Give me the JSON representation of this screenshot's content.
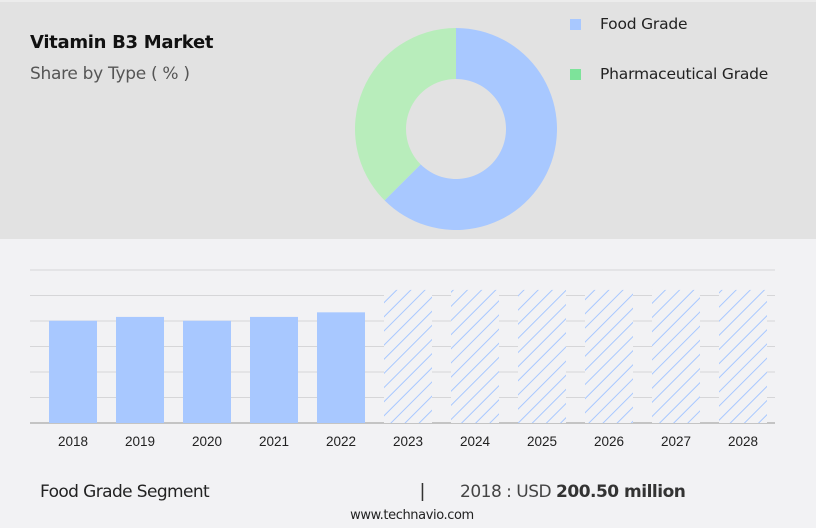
{
  "header": {
    "title": "Vitamin B3 Market",
    "subtitle": "Share by Type ( % )"
  },
  "legend": [
    {
      "label": "Food Grade",
      "color": "#a8c8ff"
    },
    {
      "label": "Pharmaceutical Grade",
      "color": "#7de39a"
    }
  ],
  "footer": {
    "segment": "Food Grade Segment",
    "separator": "|",
    "value_prefix": "2018 : USD",
    "value": "200.50 million",
    "url": "www.technavio.com"
  },
  "chart_data": [
    {
      "type": "pie",
      "title": "Vitamin B3 Market",
      "subtitle": "Share by Type ( % )",
      "donut": true,
      "categories": [
        "Food Grade",
        "Pharmaceutical Grade"
      ],
      "values": [
        62.5,
        37.5
      ],
      "colors": [
        "#a8c8ff",
        "#b8edbb"
      ],
      "legend_position": "right"
    },
    {
      "type": "bar",
      "title": "Food Grade Segment",
      "categories": [
        "2018",
        "2019",
        "2020",
        "2021",
        "2022",
        "2023",
        "2024",
        "2025",
        "2026",
        "2027",
        "2028"
      ],
      "values": [
        200.5,
        208,
        200.5,
        208,
        217,
        null,
        null,
        null,
        null,
        null,
        null
      ],
      "forecast_placeholder_height": 261,
      "forecast": [
        false,
        false,
        false,
        false,
        false,
        true,
        true,
        true,
        true,
        true,
        true
      ],
      "ylabel": "",
      "xlabel": "",
      "ylim": [
        0,
        300
      ],
      "grid": true,
      "bar_color": "#a8c8ff",
      "annotation": "2018 : USD 200.50 million"
    }
  ]
}
